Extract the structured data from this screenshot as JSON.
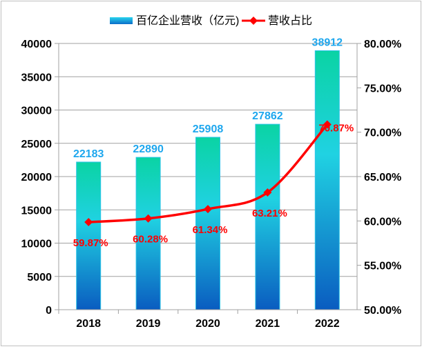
{
  "chart_data": {
    "type": "bar+line",
    "categories": [
      "2018",
      "2019",
      "2020",
      "2021",
      "2022"
    ],
    "series": [
      {
        "name": "百亿企业营收（亿元)",
        "type": "bar",
        "axis": "left",
        "values": [
          22183,
          22890,
          25908,
          27862,
          38912
        ],
        "labels": [
          "22183",
          "22890",
          "25908",
          "27862",
          "38912"
        ]
      },
      {
        "name": "营收占比",
        "type": "line",
        "axis": "right",
        "values": [
          59.87,
          60.28,
          61.34,
          63.21,
          70.87
        ],
        "labels": [
          "59.87%",
          "60.28%",
          "61.34%",
          "63.21%",
          "70.87%"
        ]
      }
    ],
    "left_axis": {
      "ylim": [
        0,
        40000
      ],
      "ticks": [
        "0",
        "5000",
        "10000",
        "15000",
        "20000",
        "25000",
        "30000",
        "35000",
        "40000"
      ]
    },
    "right_axis": {
      "ylim": [
        50,
        80
      ],
      "ticks": [
        "50.00%",
        "55.00%",
        "60.00%",
        "65.00%",
        "70.00%",
        "75.00%",
        "80.00%"
      ]
    },
    "grid": true,
    "legend": "top",
    "colors": {
      "bar_top": "#0ad3a4",
      "bar_mid": "#20d2e2",
      "bar_bottom": "#0a5cc0",
      "bar_label": "#1ea7ee",
      "line": "#ff0000",
      "grid": "#a0a0a0"
    }
  }
}
